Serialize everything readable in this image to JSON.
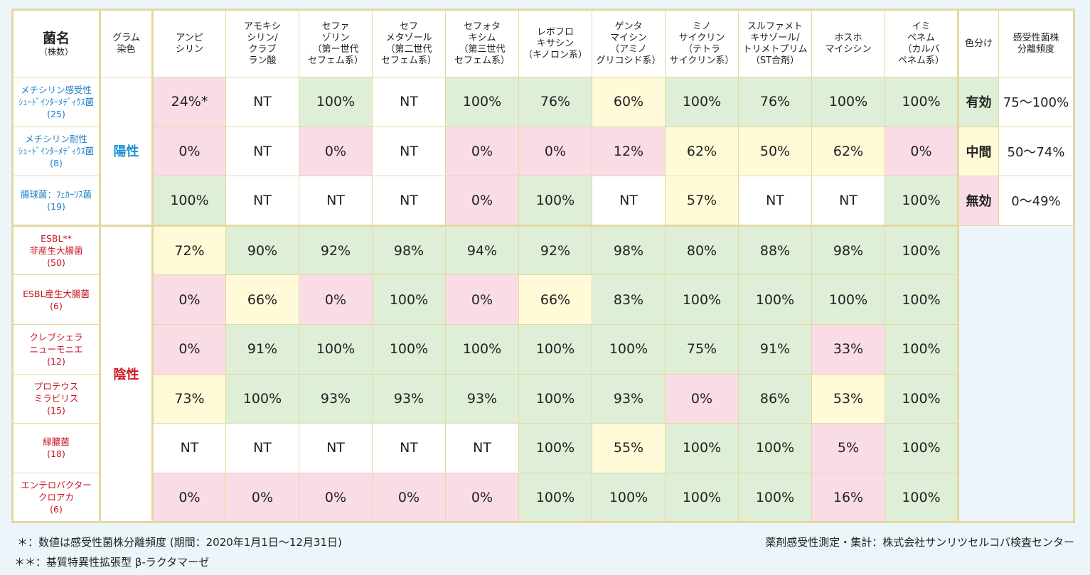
{
  "headers": {
    "bacteria": "菌名",
    "bacteria_sub": "（株数）",
    "gram": "グラム\n染色",
    "drugs": [
      "アンピ\nシリン",
      "アモキシ\nシリン/\nクラブ\nラン酸",
      "セファ\nゾリン\n（第ー世代\nセフェム系）",
      "セフ\nメタゾール\n（第二世代\nセフェム系）",
      "セフォタ\nキシム\n（第三世代\nセフェム系）",
      "レボフロ\nキサシン\n（キノロン系）",
      "ゲンタ\nマイシン\n（アミノ\nグリコシド系）",
      "ミノ\nサイクリン\n（テトラ\nサイクリン系）",
      "スルファメト\nキサゾール/\nトリメトプリム\n（ST合剤）",
      "ホスホ\nマイシシン",
      "イミ\nペネム\n（カルバ\nペネム系）"
    ],
    "legend_color": "色分け",
    "legend_freq": "感受性菌株\n分離頻度"
  },
  "gram_labels": {
    "positive": "陽性",
    "negative": "陰性"
  },
  "rows": [
    {
      "name": "メチシリン感受性\nｼｭｰﾄﾞｲﾝﾀｰﾒﾃﾞｨｳｽ菌\n(25)",
      "values": [
        "24%*",
        "NT",
        "100%",
        "NT",
        "100%",
        "76%",
        "60%",
        "100%",
        "76%",
        "100%",
        "100%"
      ]
    },
    {
      "name": "メチシリン耐性\nｼｭｰﾄﾞｲﾝﾀｰﾒﾃﾞｨｳｽ菌\n(8)",
      "values": [
        "0%",
        "NT",
        "0%",
        "NT",
        "0%",
        "0%",
        "12%",
        "62%",
        "50%",
        "62%",
        "0%"
      ]
    },
    {
      "name": "腸球菌：ﾌｪｶｰﾘｽ菌\n(19)",
      "values": [
        "100%",
        "NT",
        "NT",
        "NT",
        "0%",
        "100%",
        "NT",
        "57%",
        "NT",
        "NT",
        "100%"
      ]
    },
    {
      "name": "ESBL**\n非産生大腸菌\n(50)",
      "values": [
        "72%",
        "90%",
        "92%",
        "98%",
        "94%",
        "92%",
        "98%",
        "80%",
        "88%",
        "98%",
        "100%"
      ]
    },
    {
      "name": "ESBL産生大腸菌\n(6)",
      "values": [
        "0%",
        "66%",
        "0%",
        "100%",
        "0%",
        "66%",
        "83%",
        "100%",
        "100%",
        "100%",
        "100%"
      ]
    },
    {
      "name": "クレブシェラ\nニューモニエ\n(12)",
      "values": [
        "0%",
        "91%",
        "100%",
        "100%",
        "100%",
        "100%",
        "100%",
        "75%",
        "91%",
        "33%",
        "100%"
      ]
    },
    {
      "name": "プロテウス\nミラビリス\n(15)",
      "values": [
        "73%",
        "100%",
        "93%",
        "93%",
        "93%",
        "100%",
        "93%",
        "0%",
        "86%",
        "53%",
        "100%"
      ]
    },
    {
      "name": "緑膿菌\n(18)",
      "values": [
        "NT",
        "NT",
        "NT",
        "NT",
        "NT",
        "100%",
        "55%",
        "100%",
        "100%",
        "5%",
        "100%"
      ]
    },
    {
      "name": "エンテロバクター\nクロアカ\n(6)",
      "values": [
        "0%",
        "0%",
        "0%",
        "0%",
        "0%",
        "100%",
        "100%",
        "100%",
        "100%",
        "16%",
        "100%"
      ]
    }
  ],
  "legend": [
    {
      "label": "有効",
      "range": "75〜100%",
      "color": "#dfeed6"
    },
    {
      "label": "中間",
      "range": "50〜74%",
      "color": "#fffbd8"
    },
    {
      "label": "無効",
      "range": "0〜49%",
      "color": "#fadce6"
    }
  ],
  "footnotes": {
    "note1": "＊：数値は感受性菌株分離頻度 (期間：2020年1月1日〜12月31日)",
    "note2": "＊＊：基質特異性拡張型 β-ラクタマーゼ",
    "credit": "薬剤感受性測定・集計：株式会社サンリツセルコバ検査センター"
  }
}
